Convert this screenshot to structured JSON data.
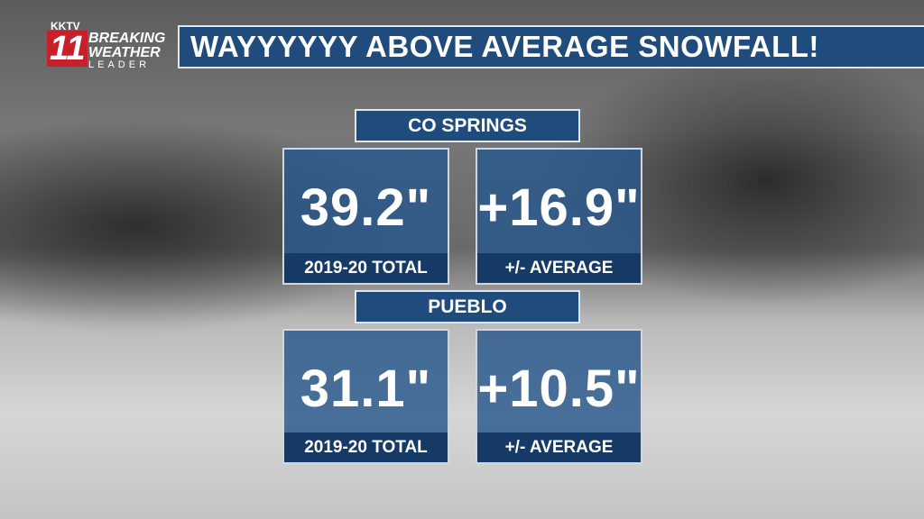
{
  "logo": {
    "station": "KKTV",
    "channel": "11",
    "line1": "BREAKING",
    "line2": "WEATHER",
    "line3": "LEADER"
  },
  "title": "WAYYYYYY ABOVE AVERAGE SNOWFALL!",
  "sections": [
    {
      "name": "CO SPRINGS",
      "total": "39.2\"",
      "total_label": "2019-20 TOTAL",
      "diff": "+16.9\"",
      "diff_label": "+/- AVERAGE"
    },
    {
      "name": "PUEBLO",
      "total": "31.1\"",
      "total_label": "2019-20 TOTAL",
      "diff": "+10.5\"",
      "diff_label": "+/- AVERAGE"
    }
  ]
}
